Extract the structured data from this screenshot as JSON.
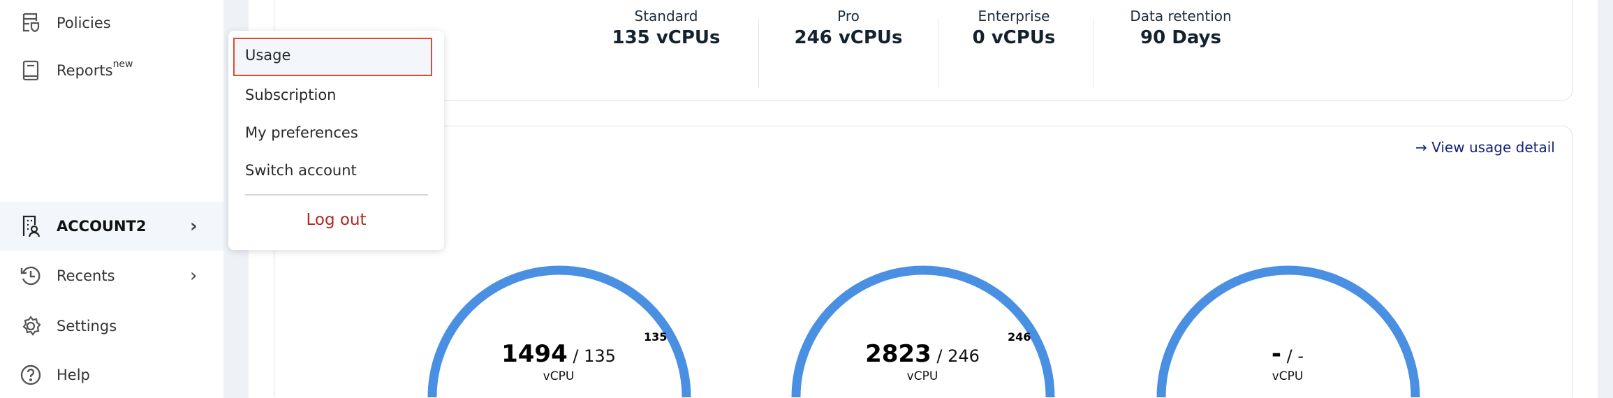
{
  "sidebar": {
    "items": [
      {
        "label": "Policies",
        "icon": "policy-shield-icon"
      },
      {
        "label": "Reports",
        "badge": "new",
        "icon": "book-icon"
      },
      {
        "label": "ACCOUNT2",
        "icon": "account-building-icon",
        "active": true
      },
      {
        "label": "Recents",
        "icon": "history-icon"
      },
      {
        "label": "Settings",
        "icon": "gear-icon"
      },
      {
        "label": "Help",
        "icon": "help-circle-icon"
      }
    ]
  },
  "account_menu": {
    "items": [
      "Usage",
      "Subscription",
      "My preferences",
      "Switch account"
    ],
    "selected": "Usage",
    "logout": "Log out",
    "logout_color": "#b3261e",
    "highlight_color": "#e04a2e"
  },
  "plan_summary": [
    {
      "label": "Standard",
      "value": "135 vCPUs"
    },
    {
      "label": "Pro",
      "value": "246 vCPUs"
    },
    {
      "label": "Enterprise",
      "value": "0 vCPUs"
    },
    {
      "label": "Data retention",
      "value": "90 Days"
    }
  ],
  "usage": {
    "link": "View usage detail",
    "gauge_color": "#4a90e2",
    "gauges": [
      {
        "used": "1494",
        "limit": "135",
        "unit": "vCPU",
        "cap_label": "135"
      },
      {
        "used": "2823",
        "limit": "246",
        "unit": "vCPU",
        "cap_label": "246"
      },
      {
        "used": "-",
        "limit": "-",
        "unit": "vCPU",
        "cap_label": ""
      }
    ]
  }
}
